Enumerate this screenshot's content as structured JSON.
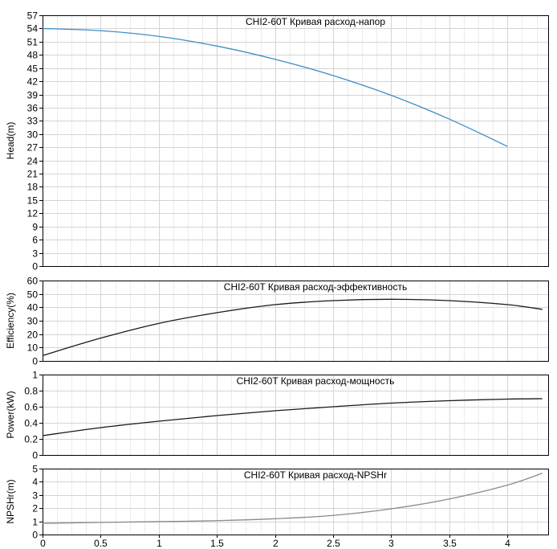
{
  "chart_data": [
    {
      "type": "line",
      "title": "CHI2-60T Кривая расход-напор",
      "xlabel": "",
      "ylabel": "Head(m)",
      "xlim": [
        0,
        4.35
      ],
      "ylim": [
        0,
        57
      ],
      "y_ticks": [
        "0",
        "3",
        "6",
        "9",
        "12",
        "15",
        "18",
        "21",
        "24",
        "27",
        "30",
        "33",
        "36",
        "39",
        "42",
        "45",
        "48",
        "51",
        "54",
        "57"
      ],
      "grid": true,
      "color": "#3b8fc4",
      "series": [
        {
          "x": [
            0,
            0.5,
            1,
            1.5,
            2,
            2.5,
            3,
            3.5,
            4
          ],
          "y": [
            54.0,
            53.5,
            52.2,
            50.0,
            47.0,
            43.3,
            38.8,
            33.4,
            27.2
          ]
        }
      ]
    },
    {
      "type": "line",
      "title": "CHI2-60T Кривая расход-эффективность",
      "xlabel": "",
      "ylabel": "Efficiency(%)",
      "xlim": [
        0,
        4.35
      ],
      "ylim": [
        0,
        60
      ],
      "y_ticks": [
        "0",
        "10",
        "20",
        "30",
        "40",
        "50",
        "60"
      ],
      "grid": true,
      "color": "#1a1a1a",
      "series": [
        {
          "x": [
            0,
            0.5,
            1,
            1.5,
            2,
            2.5,
            3,
            3.5,
            4,
            4.3
          ],
          "y": [
            4,
            17,
            28,
            36,
            42,
            45,
            46,
            45,
            42,
            38.5
          ]
        }
      ]
    },
    {
      "type": "line",
      "title": "CHI2-60T Кривая расход-мощность",
      "xlabel": "",
      "ylabel": "Power(kW)",
      "xlim": [
        0,
        4.35
      ],
      "ylim": [
        0,
        1
      ],
      "y_ticks": [
        "0",
        "0.2",
        "0.4",
        "0.6",
        "0.8",
        "1"
      ],
      "grid": true,
      "color": "#1a1a1a",
      "series": [
        {
          "x": [
            0,
            0.5,
            1,
            1.5,
            2,
            2.5,
            3,
            3.5,
            4,
            4.3
          ],
          "y": [
            0.24,
            0.34,
            0.42,
            0.49,
            0.55,
            0.6,
            0.645,
            0.675,
            0.695,
            0.7
          ]
        }
      ]
    },
    {
      "type": "line",
      "title": "CHI2-60T Кривая расход-NPSHr",
      "xlabel": "",
      "ylabel": "NPSHr(m)",
      "xlim": [
        0,
        4.35
      ],
      "ylim": [
        0,
        5
      ],
      "y_ticks": [
        "0",
        "1",
        "2",
        "3",
        "4",
        "5"
      ],
      "x_ticks": [
        "0",
        "0.5",
        "1",
        "1.5",
        "2",
        "2.5",
        "3",
        "3.5",
        "4"
      ],
      "grid": true,
      "color": "#8a8a8a",
      "series": [
        {
          "x": [
            0,
            0.5,
            1,
            1.5,
            2,
            2.5,
            3,
            3.5,
            4,
            4.3
          ],
          "y": [
            0.85,
            0.92,
            0.98,
            1.05,
            1.2,
            1.45,
            1.95,
            2.7,
            3.75,
            4.65
          ]
        }
      ]
    }
  ]
}
